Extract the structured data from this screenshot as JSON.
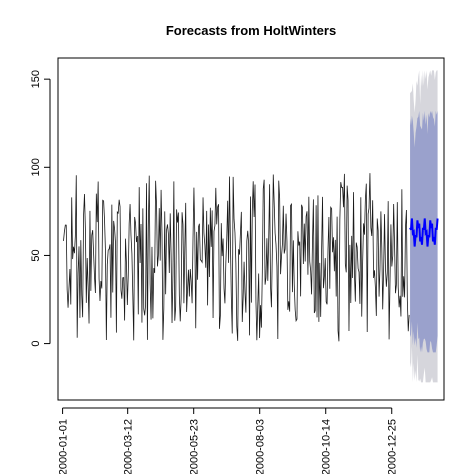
{
  "chart_data": {
    "type": "line",
    "title": "Forecasts from HoltWinters",
    "xlabel": "",
    "ylabel": "",
    "y_ticks": [
      "0",
      "50",
      "100",
      "150"
    ],
    "y_tick_values": [
      0,
      50,
      100,
      150
    ],
    "x_ticks": [
      "2000-01-01",
      "2000-03-12",
      "2000-05-23",
      "2000-08-03",
      "2000-10-14",
      "2000-12-25"
    ],
    "x_tick_days": [
      0,
      71,
      143,
      215,
      287,
      359
    ],
    "ylim": [
      -32,
      162
    ],
    "xlim_days": [
      -5,
      416
    ],
    "grid": false,
    "legend": "none",
    "history": {
      "start_date": "2000-01-02",
      "approx_points": 380,
      "approx_range": [
        1,
        98
      ],
      "approx_mean": 47,
      "end_date": "2001-01-13"
    },
    "forecast": {
      "start_date": "2001-01-14",
      "end_date": "2001-02-13",
      "point_range": [
        54,
        74
      ],
      "approx_mean": 63,
      "interval_80_range": [
        -5,
        132
      ],
      "interval_95_range": [
        -22,
        155
      ]
    },
    "colors": {
      "history_line": "#1a1a1a",
      "forecast_line": "#0000ff",
      "interval_80": "#9aa1cc",
      "interval_95": "#d6d6dc",
      "axis": "#000000"
    }
  }
}
